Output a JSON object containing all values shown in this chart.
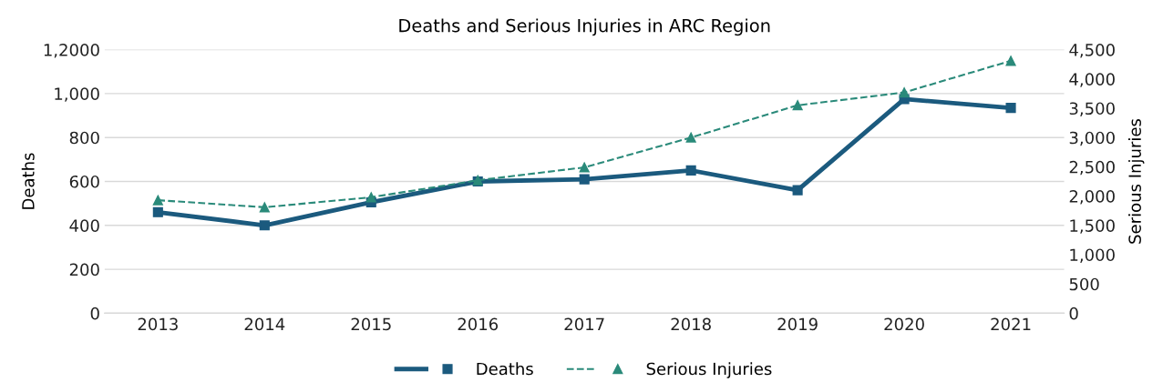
{
  "chart_data": {
    "type": "line",
    "title": "Deaths and Serious Injuries in ARC Region",
    "ylabel": "Deaths",
    "y2label": "Serious Injuries",
    "categories": [
      "2013",
      "2014",
      "2015",
      "2016",
      "2017",
      "2018",
      "2019",
      "2020",
      "2021"
    ],
    "series": [
      {
        "name": "Deaths",
        "color": "#1b5a7e",
        "values": [
          460,
          400,
          505,
          600,
          610,
          650,
          560,
          975,
          935
        ],
        "marker": "square",
        "line_style": "solid"
      },
      {
        "name": "Serious Injuries",
        "color": "#2a8a7a",
        "values": [
          1930,
          1810,
          1980,
          2270,
          2490,
          3000,
          3550,
          3770,
          4310
        ],
        "axis": "y2",
        "marker": "triangle",
        "line_style": "dashed"
      }
    ],
    "ylim": [
      0,
      1200
    ],
    "yticks": [
      0,
      200,
      400,
      600,
      800,
      {
        "value": 1000,
        "label": "1,000"
      },
      {
        "value": 1200,
        "label": "1,2000"
      }
    ],
    "y2lim": [
      0,
      4500
    ],
    "y2ticks": [
      0,
      500,
      {
        "value": 1000,
        "label": "1,000"
      },
      {
        "value": 1500,
        "label": "1,500"
      },
      {
        "value": 2000,
        "label": "2,000"
      },
      {
        "value": 2500,
        "label": "2,500"
      },
      {
        "value": 3000,
        "label": "3,000"
      },
      {
        "value": 3500,
        "label": "3,500"
      },
      {
        "value": 4000,
        "label": "4,000"
      },
      {
        "value": 4500,
        "label": "4,500"
      }
    ],
    "grid": "y",
    "legend": "bottom"
  }
}
